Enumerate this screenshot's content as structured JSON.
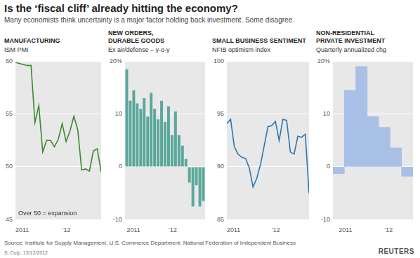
{
  "title": "Is the ‘fiscal cliff’ already hitting the economy?",
  "subtitle": "Many economists think uncertainty is a major factor holding back investment. Some disagree.",
  "source": "Source: Institute for Supply Management, U.S. Commerce Department, National Federation of Independent Business",
  "credit": "S. Culp, 13/12/2012",
  "logo": "REUTERS",
  "chart_data": [
    {
      "type": "line",
      "title": "MANUFACTURING",
      "subtitle": "ISM PMI",
      "annotation": "Over 50 = expansion",
      "categories": [
        "2011",
        null,
        null,
        null,
        null,
        null,
        null,
        null,
        null,
        null,
        null,
        null,
        "’12",
        null,
        null,
        null,
        null,
        null,
        null,
        null,
        null,
        null,
        null
      ],
      "values": [
        59.9,
        59.8,
        59.7,
        59.6,
        59.6,
        54.2,
        55.8,
        51.4,
        52.5,
        52.5,
        51.9,
        52.6,
        54.1,
        52.4,
        53.4,
        54.8,
        53.5,
        49.7,
        49.8,
        49.6,
        51.5,
        51.7,
        49.5
      ],
      "color": "#3a8a2c",
      "ylim": [
        45,
        60
      ],
      "yticks": [
        45,
        50,
        55,
        60
      ],
      "grid": true
    },
    {
      "type": "bar",
      "title": "NEW ORDERS,\nDURABLE GOODS",
      "subtitle": "Ex air/defense – y-o-y",
      "categories": [
        "2011",
        null,
        null,
        null,
        null,
        null,
        null,
        null,
        null,
        null,
        null,
        null,
        "’12",
        null,
        null,
        null,
        null,
        null,
        null,
        null,
        null,
        null,
        null
      ],
      "values": [
        18.5,
        12.5,
        14.5,
        12,
        11,
        13,
        9.5,
        14,
        11,
        9,
        12.5,
        8.5,
        11.5,
        6,
        10.5,
        6,
        4,
        1.5,
        -3,
        -7.5,
        -3.5,
        -7.5,
        -6.5
      ],
      "color": "#5aa89b",
      "ylim": [
        -10,
        20
      ],
      "yticks": [
        -10,
        0,
        10,
        {
          "value": 20,
          "label": "20%"
        }
      ],
      "grid": true
    },
    {
      "type": "line",
      "title": "SMALL BUSINESS SENTIMENT",
      "subtitle": "NFIB optimism index",
      "categories": [
        "2011",
        null,
        null,
        null,
        null,
        null,
        null,
        null,
        null,
        null,
        null,
        null,
        "’12",
        null,
        null,
        null,
        null,
        null,
        null,
        null,
        null,
        null,
        null
      ],
      "values": [
        94.1,
        94.5,
        91.9,
        91.2,
        90.9,
        90.8,
        89.9,
        88.1,
        88.9,
        90.2,
        92.0,
        93.8,
        93.9,
        94.3,
        92.5,
        94.5,
        94.4,
        91.4,
        91.2,
        92.9,
        92.8,
        93.1,
        87.5
      ],
      "color": "#2a77b2",
      "ylim": [
        85,
        100
      ],
      "yticks": [
        85,
        90,
        95,
        100
      ],
      "grid": true
    },
    {
      "type": "bar",
      "title": "NON-RESIDENTIAL\nPRIVATE INVESTMENT",
      "subtitle": "Quarterly annualized chg",
      "categories": [
        "2011",
        null,
        null,
        null,
        "’12",
        null,
        null
      ],
      "values": [
        -1.3,
        14.5,
        19,
        9.5,
        7.5,
        3.6,
        -1.8
      ],
      "color": "#a9c0e6",
      "ylim": [
        -10,
        20
      ],
      "yticks": [
        -10,
        0,
        10,
        {
          "value": 20,
          "label": "20%"
        }
      ],
      "grid": true
    }
  ]
}
